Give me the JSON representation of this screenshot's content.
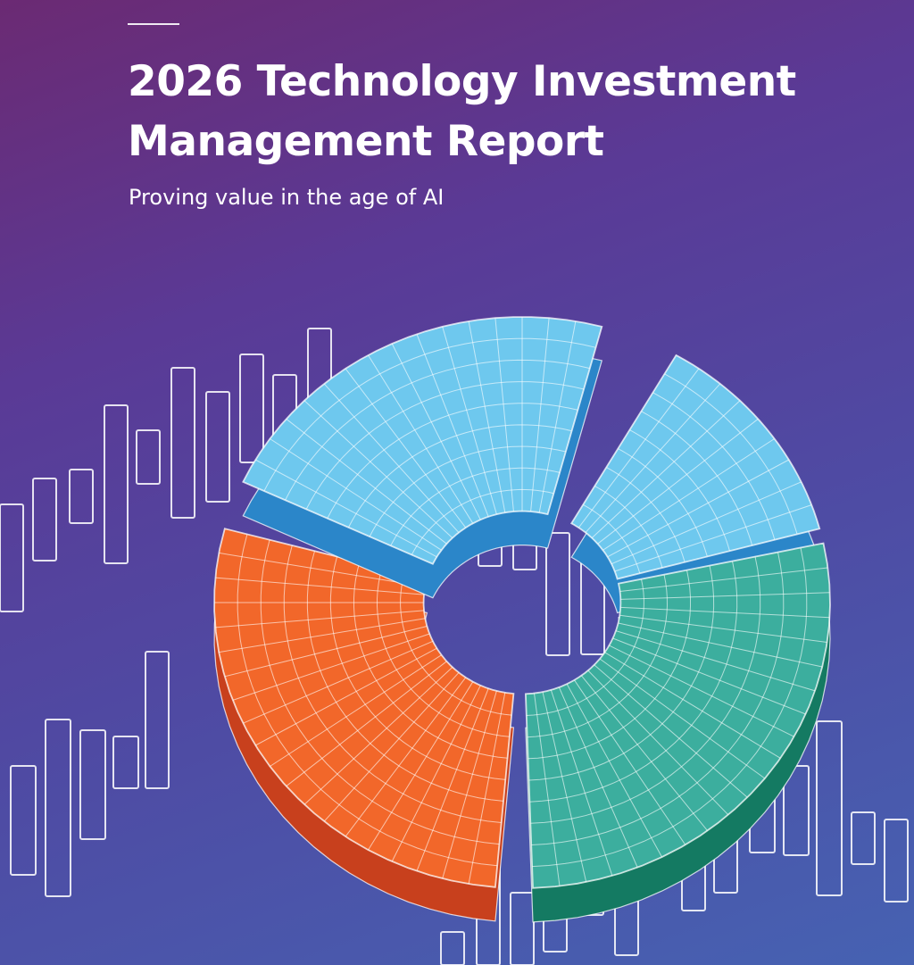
{
  "cover": {
    "title": "2026 Technology Investment Management Report",
    "subtitle": "Proving value in the age of AI"
  },
  "colors": {
    "background_top": "#6b2a73",
    "background_bottom": "#4662b2",
    "segment_blue": "#6ec8ee",
    "segment_blue_dark": "#2b86c9",
    "segment_orange": "#f2672a",
    "segment_orange_dark": "#c8401d",
    "segment_teal": "#3cae9e",
    "segment_teal_dark": "#147a62",
    "outline": "#ffffff"
  },
  "icons": [
    "candlestick-bars",
    "donut-chart-arrow"
  ]
}
